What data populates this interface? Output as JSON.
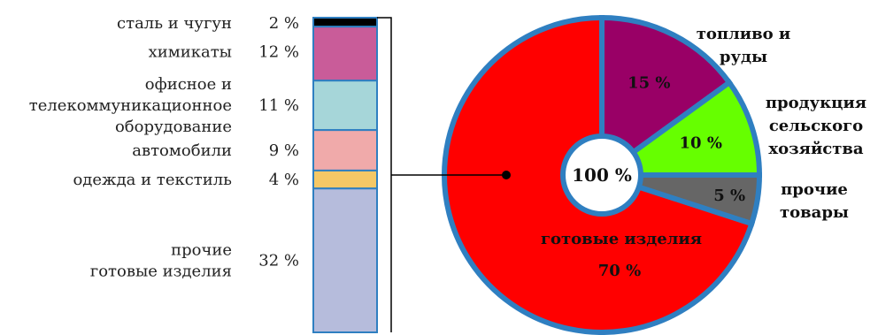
{
  "chart_data": [
    {
      "type": "bar",
      "subtype": "stacked-100",
      "orientation": "vertical",
      "categories": [
        "сталь и чугун",
        "химикаты",
        "офисное и телекоммуникационное оборудование",
        "автомобили",
        "одежда и текстиль",
        "прочие готовые изделия"
      ],
      "values": [
        2,
        12,
        11,
        9,
        4,
        32
      ],
      "value_labels": [
        "2 %",
        "12 %",
        "11 %",
        "9 %",
        "4 %",
        "32 %"
      ],
      "label_lines": [
        [
          "сталь и чугун"
        ],
        [
          "химикаты"
        ],
        [
          "офисное и",
          "телекоммуникационное",
          "оборудование"
        ],
        [
          "автомобили"
        ],
        [
          "одежда и текстиль"
        ],
        [
          "прочие",
          "готовые изделия"
        ]
      ],
      "colors": [
        "#000000",
        "#c95c99",
        "#a6d6d9",
        "#f0aaaa",
        "#f5c866",
        "#b6bcdc"
      ],
      "border_color": "#2f7fc1"
    },
    {
      "type": "pie",
      "center_label": "100 %",
      "slices": [
        {
          "name": "готовые изделия",
          "value": 70,
          "label": "70 %",
          "color": "#ff0000"
        },
        {
          "name": "топливо и руды",
          "value": 15,
          "label": "15 %",
          "color": "#990066"
        },
        {
          "name": "продукция сельского хозяйства",
          "value": 10,
          "label": "10 %",
          "color": "#66ff00"
        },
        {
          "name": "прочие товары",
          "value": 5,
          "label": "5 %",
          "color": "#666666"
        }
      ],
      "outside_label_lines": {
        "топливо и руды": [
          "топливо и",
          "руды"
        ],
        "продукция сельского хозяйства": [
          "продукция",
          "сельского",
          "хозяйства"
        ],
        "прочие товары": [
          "прочие",
          "товары"
        ]
      },
      "border_color": "#2f7fc1",
      "connector_from": "готовые изделия"
    }
  ]
}
